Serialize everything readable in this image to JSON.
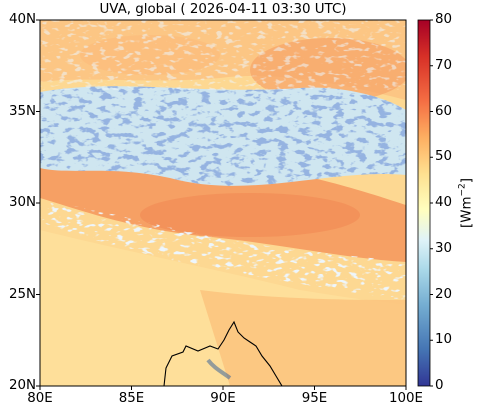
{
  "title": "UVA, global ( 2026-04-11 03:30 UTC)",
  "map": {
    "x_ticks": [
      "80E",
      "85E",
      "90E",
      "95E",
      "100E"
    ],
    "y_ticks": [
      "40N",
      "35N",
      "30N",
      "25N",
      "20N"
    ],
    "lon_range": [
      80,
      100
    ],
    "lat_range": [
      20,
      40
    ]
  },
  "colorbar": {
    "label_base": "[Wm",
    "label_exp": "−2",
    "label_close": "]",
    "ticks": [
      "80",
      "70",
      "60",
      "50",
      "40",
      "30",
      "20",
      "10",
      "0"
    ],
    "range": [
      0,
      80
    ],
    "colors": [
      "#313695",
      "#4575b4",
      "#74add1",
      "#abd9e9",
      "#e0f3f8",
      "#ffffbf",
      "#fee090",
      "#fdae61",
      "#f46d43",
      "#d73027",
      "#a50026"
    ]
  }
}
